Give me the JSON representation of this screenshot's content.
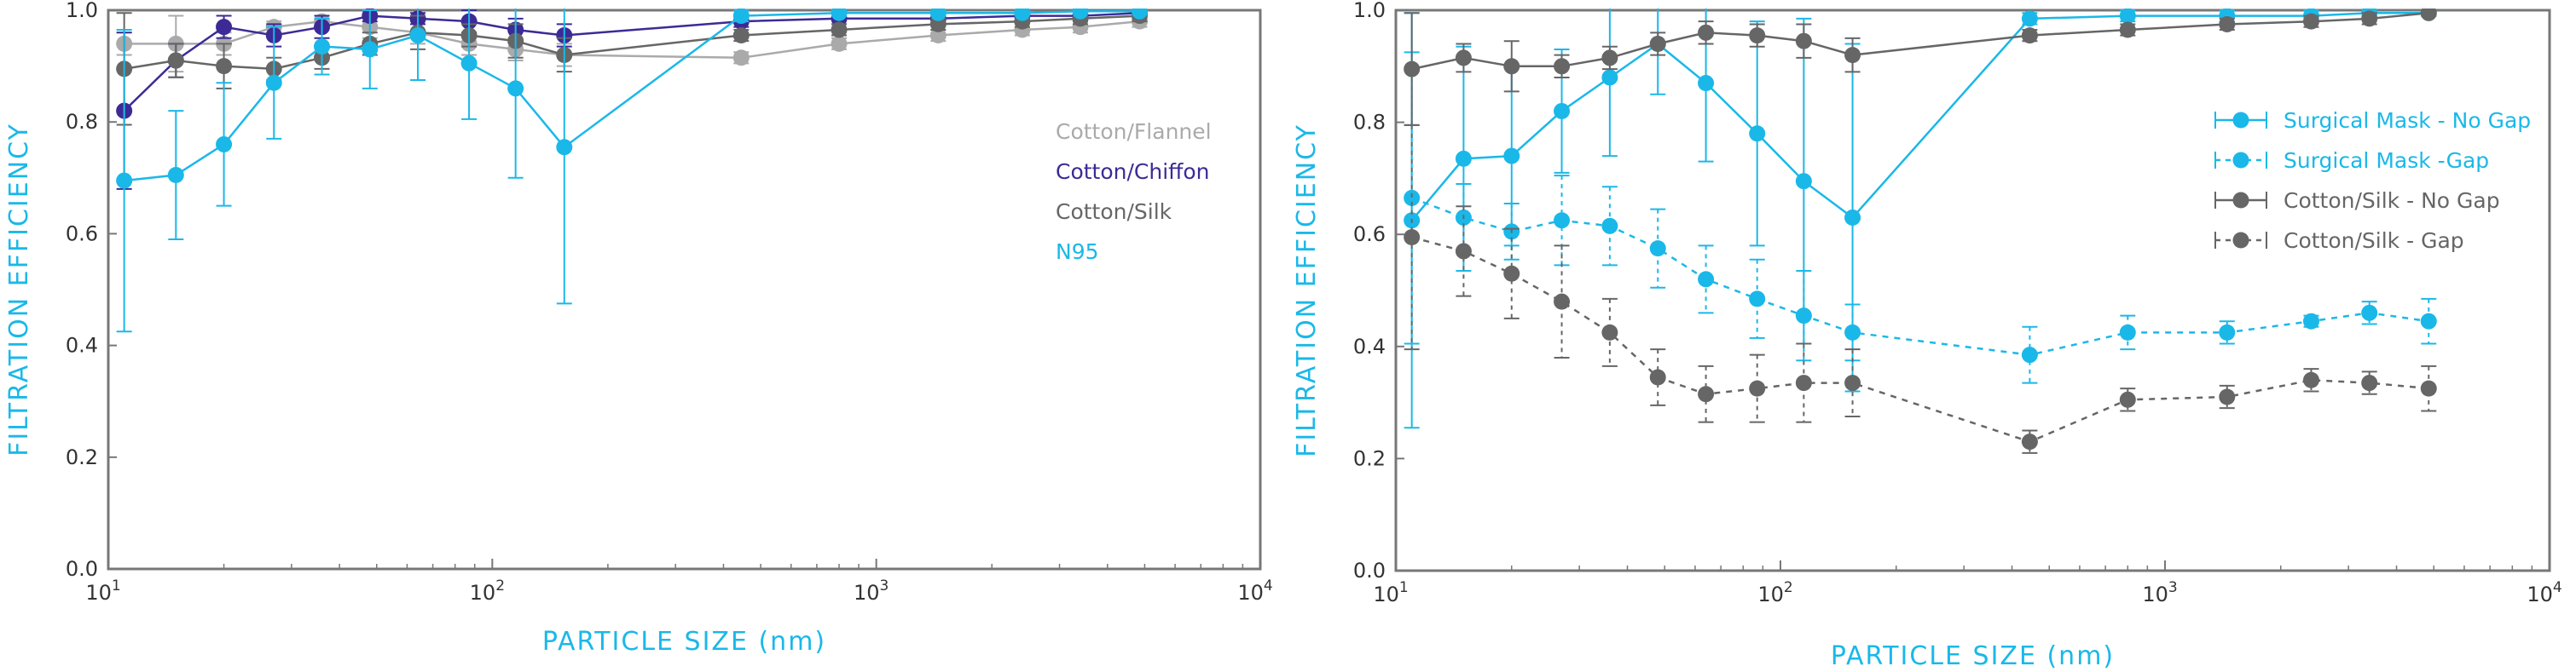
{
  "chart_data": [
    {
      "type": "line",
      "ylabel": "FILTRATION EFFICIENCY",
      "xlabel": "PARTICLE SIZE (nm)",
      "xscale": "log",
      "xlim": [
        10,
        10000
      ],
      "ylim": [
        0.0,
        1.0
      ],
      "yticks": [
        "0.0",
        "0.2",
        "0.4",
        "0.6",
        "0.8",
        "1.0"
      ],
      "xticks": [
        {
          "base": "10",
          "exp": "1"
        },
        {
          "base": "10",
          "exp": "2"
        },
        {
          "base": "10",
          "exp": "3"
        },
        {
          "base": "10",
          "exp": "4"
        }
      ],
      "legend_position": "right",
      "grid": false,
      "series": [
        {
          "name": "Cotton/Flannel",
          "color": "#aaaaaa",
          "dashed": false,
          "x": [
            11,
            15,
            20,
            27,
            36,
            48,
            64,
            87,
            115,
            154,
            445,
            800,
            1450,
            2400,
            3400,
            4850
          ],
          "y": [
            0.94,
            0.94,
            0.94,
            0.97,
            0.98,
            0.97,
            0.96,
            0.94,
            0.93,
            0.92,
            0.915,
            0.94,
            0.955,
            0.965,
            0.97,
            0.98
          ],
          "err": [
            0.02,
            0.05,
            0.02,
            0.01,
            0.01,
            0.02,
            0.02,
            0.02,
            0.02,
            0.02,
            0.01,
            0.01,
            0.01,
            0.01,
            0.01,
            0.01
          ]
        },
        {
          "name": "Cotton/Chiffon",
          "color": "#3d2a96",
          "dashed": false,
          "x": [
            11,
            15,
            20,
            27,
            36,
            48,
            64,
            87,
            115,
            154,
            445,
            800,
            1450,
            2400,
            3400,
            4850
          ],
          "y": [
            0.82,
            0.91,
            0.97,
            0.955,
            0.97,
            0.99,
            0.985,
            0.98,
            0.965,
            0.955,
            0.98,
            0.985,
            0.985,
            0.99,
            0.99,
            0.995
          ],
          "err": [
            0.14,
            0.03,
            0.02,
            0.02,
            0.02,
            0.01,
            0.01,
            0.02,
            0.02,
            0.02,
            0.01,
            0.01,
            0.01,
            0.01,
            0.01,
            0.01
          ]
        },
        {
          "name": "Cotton/Silk",
          "color": "#666666",
          "dashed": false,
          "x": [
            11,
            15,
            20,
            27,
            36,
            48,
            64,
            87,
            115,
            154,
            445,
            800,
            1450,
            2400,
            3400,
            4850
          ],
          "y": [
            0.895,
            0.91,
            0.9,
            0.895,
            0.915,
            0.94,
            0.96,
            0.955,
            0.945,
            0.92,
            0.955,
            0.965,
            0.975,
            0.98,
            0.985,
            0.99
          ],
          "err": [
            0.1,
            0.03,
            0.04,
            0.02,
            0.02,
            0.02,
            0.03,
            0.02,
            0.03,
            0.03,
            0.01,
            0.01,
            0.01,
            0.01,
            0.01,
            0.01
          ]
        },
        {
          "name": "N95",
          "color": "#1ab8e8",
          "dashed": false,
          "x": [
            11,
            15,
            20,
            27,
            36,
            48,
            64,
            87,
            115,
            154,
            445,
            800,
            1450,
            2400,
            3400,
            4850
          ],
          "y": [
            0.695,
            0.705,
            0.76,
            0.87,
            0.935,
            0.93,
            0.955,
            0.905,
            0.86,
            0.755,
            0.99,
            0.995,
            0.995,
            0.995,
            0.998,
            0.998
          ],
          "err": [
            0.27,
            0.115,
            0.11,
            0.1,
            0.05,
            0.07,
            0.08,
            0.1,
            0.16,
            0.28,
            0.01,
            0.005,
            0.005,
            0.005,
            0.003,
            0.003
          ]
        }
      ]
    },
    {
      "type": "line",
      "ylabel": "FILTRATION EFFICIENCY",
      "xlabel": "PARTICLE SIZE (nm)",
      "xscale": "log",
      "xlim": [
        10,
        10000
      ],
      "ylim": [
        0.0,
        1.0
      ],
      "yticks": [
        "0.0",
        "0.2",
        "0.4",
        "0.6",
        "0.8",
        "1.0"
      ],
      "xticks": [
        {
          "base": "10",
          "exp": "1"
        },
        {
          "base": "10",
          "exp": "2"
        },
        {
          "base": "10",
          "exp": "3"
        },
        {
          "base": "10",
          "exp": "4"
        }
      ],
      "legend_position": "right",
      "grid": false,
      "series": [
        {
          "name": "Surgical Mask - No Gap",
          "color": "#1ab8e8",
          "dashed": false,
          "x": [
            11,
            15,
            20,
            27,
            36,
            48,
            64,
            87,
            115,
            154,
            445,
            800,
            1450,
            2400,
            3400,
            4850
          ],
          "y": [
            0.625,
            0.735,
            0.74,
            0.82,
            0.88,
            0.94,
            0.87,
            0.78,
            0.695,
            0.63,
            0.985,
            0.99,
            0.99,
            0.99,
            0.995,
            0.995
          ],
          "err": [
            0.37,
            0.2,
            0.16,
            0.11,
            0.14,
            0.09,
            0.14,
            0.2,
            0.29,
            0.31,
            0.01,
            0.01,
            0.01,
            0.01,
            0.005,
            0.005
          ]
        },
        {
          "name": "Surgical Mask -Gap",
          "color": "#1ab8e8",
          "dashed": true,
          "x": [
            11,
            15,
            20,
            27,
            36,
            48,
            64,
            87,
            115,
            154,
            445,
            800,
            1450,
            2400,
            3400,
            4850
          ],
          "y": [
            0.665,
            0.63,
            0.605,
            0.625,
            0.615,
            0.575,
            0.52,
            0.485,
            0.455,
            0.425,
            0.385,
            0.425,
            0.425,
            0.445,
            0.46,
            0.445
          ],
          "err": [
            0.26,
            0.06,
            0.05,
            0.08,
            0.07,
            0.07,
            0.06,
            0.07,
            0.08,
            0.05,
            0.05,
            0.03,
            0.02,
            0.01,
            0.02,
            0.04
          ]
        },
        {
          "name": "Cotton/Silk - No Gap",
          "color": "#666666",
          "dashed": false,
          "x": [
            11,
            15,
            20,
            27,
            36,
            48,
            64,
            87,
            115,
            154,
            445,
            800,
            1450,
            2400,
            3400,
            4850
          ],
          "y": [
            0.895,
            0.915,
            0.9,
            0.9,
            0.915,
            0.94,
            0.96,
            0.955,
            0.945,
            0.92,
            0.955,
            0.965,
            0.975,
            0.98,
            0.985,
            0.995
          ],
          "err": [
            0.1,
            0.025,
            0.045,
            0.02,
            0.02,
            0.02,
            0.02,
            0.02,
            0.03,
            0.03,
            0.01,
            0.01,
            0.01,
            0.01,
            0.01,
            0.005
          ]
        },
        {
          "name": "Cotton/Silk - Gap",
          "color": "#666666",
          "dashed": true,
          "x": [
            11,
            15,
            20,
            27,
            36,
            48,
            64,
            87,
            115,
            154,
            445,
            800,
            1450,
            2400,
            3400,
            4850
          ],
          "y": [
            0.595,
            0.57,
            0.53,
            0.48,
            0.425,
            0.345,
            0.315,
            0.325,
            0.335,
            0.335,
            0.23,
            0.305,
            0.31,
            0.34,
            0.335,
            0.325
          ],
          "err": [
            0.2,
            0.08,
            0.08,
            0.1,
            0.06,
            0.05,
            0.05,
            0.06,
            0.07,
            0.06,
            0.02,
            0.02,
            0.02,
            0.02,
            0.02,
            0.04
          ]
        }
      ]
    }
  ]
}
